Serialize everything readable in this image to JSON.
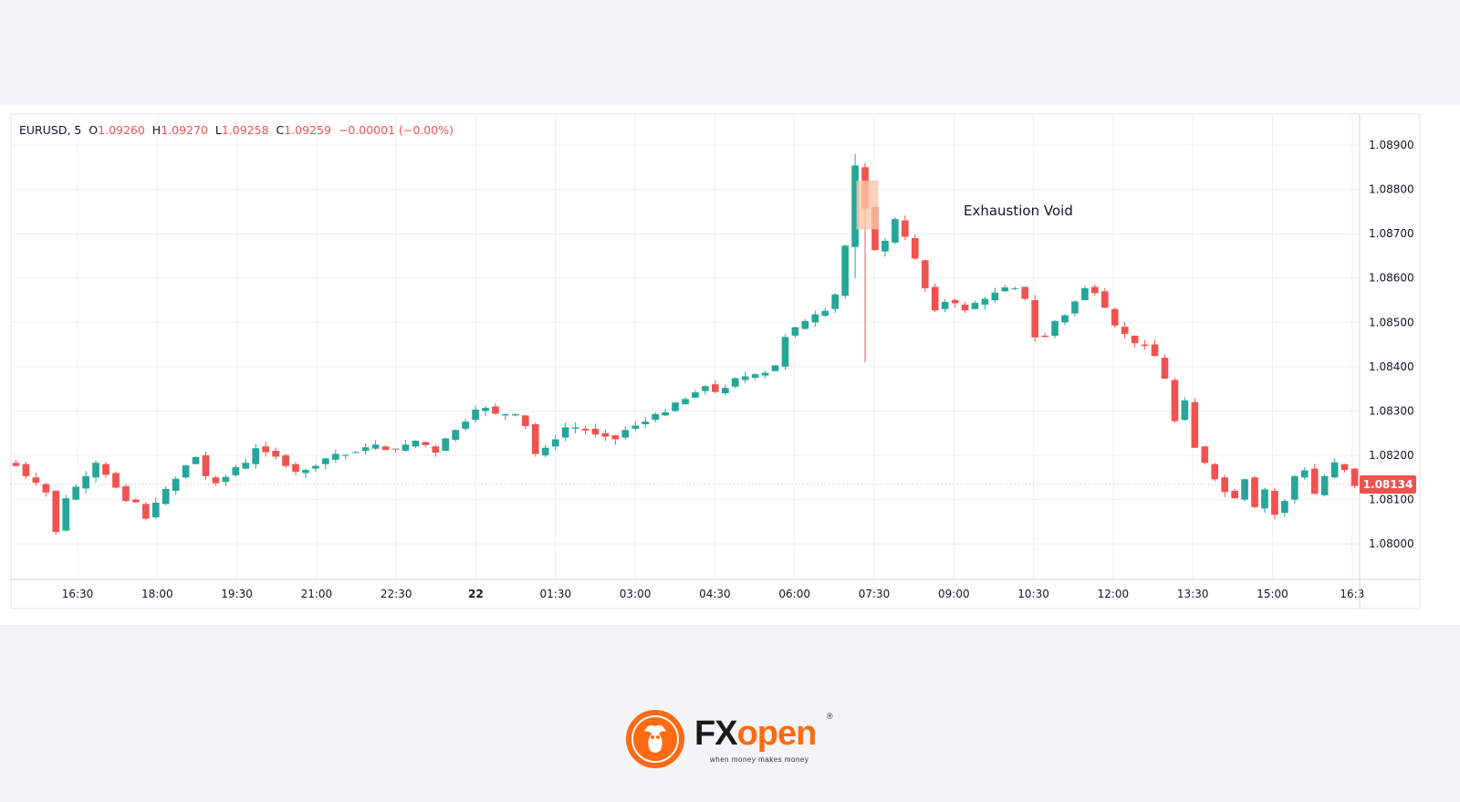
{
  "header": {
    "symbol": "EURUSD, 5",
    "open_label": "O",
    "open_value": "1.09260",
    "high_label": "H",
    "high_value": "1.09270",
    "low_label": "L",
    "low_value": "1.09258",
    "close_label": "C",
    "close_value": "1.09259",
    "change": "−0.00001 (−0.00%)"
  },
  "annotation": {
    "label": "Exhaustion Void"
  },
  "price_badge": "1.08134",
  "logo": {
    "brand_fx": "FX",
    "brand_open": "open",
    "registered": "®",
    "tagline": "when money makes money"
  },
  "colors": {
    "up": "#26a69a",
    "down": "#ef5350",
    "void_fill": "#fbc4a8",
    "badge": "#ef5350"
  },
  "chart_data": {
    "type": "candlestick",
    "timeframe": "5",
    "y_ticks": [
      "1.08000",
      "1.08100",
      "1.08200",
      "1.08300",
      "1.08400",
      "1.08500",
      "1.08600",
      "1.08700",
      "1.08800",
      "1.08900"
    ],
    "x_ticks": [
      "16:30",
      "18:00",
      "19:30",
      "21:00",
      "22:30",
      "22",
      "01:30",
      "03:00",
      "04:30",
      "06:00",
      "07:30",
      "09:00",
      "10:30",
      "12:00",
      "13:30",
      "15:00",
      "16:3"
    ],
    "ylim": [
      1.0792,
      1.0897
    ],
    "grid": true,
    "last_price": 1.08134,
    "close_path": [
      [
        0,
        1.0818
      ],
      [
        1,
        1.0815
      ],
      [
        3,
        1.0812
      ],
      [
        4,
        1.0803
      ],
      [
        5,
        1.081
      ],
      [
        7,
        1.0815
      ],
      [
        8,
        1.0818
      ],
      [
        9,
        1.0816
      ],
      [
        11,
        1.081
      ],
      [
        12,
        1.0809
      ],
      [
        13,
        1.0806
      ],
      [
        15,
        1.0812
      ],
      [
        17,
        1.0818
      ],
      [
        18,
        1.082
      ],
      [
        19,
        1.0815
      ],
      [
        20,
        1.0814
      ],
      [
        22,
        1.0817
      ],
      [
        23,
        1.0818
      ],
      [
        24,
        1.0822
      ],
      [
        26,
        1.082
      ],
      [
        28,
        1.0816
      ],
      [
        30,
        1.0818
      ],
      [
        32,
        1.082
      ],
      [
        34,
        1.0821
      ],
      [
        36,
        1.0822
      ],
      [
        38,
        1.0821
      ],
      [
        40,
        1.0823
      ],
      [
        42,
        1.0821
      ],
      [
        44,
        1.0826
      ],
      [
        46,
        1.083
      ],
      [
        47,
        1.0831
      ],
      [
        48,
        1.0829
      ],
      [
        50,
        1.0829
      ],
      [
        51,
        1.0827
      ],
      [
        52,
        1.082
      ],
      [
        53,
        1.0822
      ],
      [
        55,
        1.0826
      ],
      [
        57,
        1.0826
      ],
      [
        58,
        1.0825
      ],
      [
        60,
        1.0824
      ],
      [
        61,
        1.0826
      ],
      [
        63,
        1.0828
      ],
      [
        65,
        1.083
      ],
      [
        67,
        1.0833
      ],
      [
        69,
        1.0836
      ],
      [
        70,
        1.0834
      ],
      [
        72,
        1.0837
      ],
      [
        74,
        1.0838
      ],
      [
        76,
        1.084
      ],
      [
        77,
        1.0847
      ],
      [
        79,
        1.085
      ],
      [
        81,
        1.0853
      ],
      [
        82,
        1.0856
      ],
      [
        83,
        1.0867
      ],
      [
        84,
        1.0885
      ],
      [
        85,
        1.0876
      ],
      [
        86,
        1.0866
      ],
      [
        87,
        1.0868
      ],
      [
        88,
        1.0873
      ],
      [
        89,
        1.0869
      ],
      [
        90,
        1.0864
      ],
      [
        91,
        1.0858
      ],
      [
        92,
        1.0853
      ],
      [
        93,
        1.0855
      ],
      [
        95,
        1.0853
      ],
      [
        97,
        1.0855
      ],
      [
        98,
        1.0857
      ],
      [
        100,
        1.0858
      ],
      [
        101,
        1.0855
      ],
      [
        102,
        1.0847
      ],
      [
        103,
        1.0847
      ],
      [
        104,
        1.085
      ],
      [
        105,
        1.0852
      ],
      [
        106,
        1.0855
      ],
      [
        107,
        1.0858
      ],
      [
        108,
        1.0857
      ],
      [
        109,
        1.0853
      ],
      [
        110,
        1.0849
      ],
      [
        111,
        1.0847
      ],
      [
        112,
        1.0845
      ],
      [
        113,
        1.0845
      ],
      [
        114,
        1.0842
      ],
      [
        115,
        1.0837
      ],
      [
        116,
        1.0828
      ],
      [
        117,
        1.0832
      ],
      [
        118,
        1.0822
      ],
      [
        119,
        1.0818
      ],
      [
        120,
        1.0815
      ],
      [
        121,
        1.0812
      ],
      [
        122,
        1.081
      ],
      [
        123,
        1.0815
      ],
      [
        124,
        1.0808
      ],
      [
        125,
        1.0812
      ],
      [
        126,
        1.0807
      ],
      [
        127,
        1.081
      ],
      [
        128,
        1.0815
      ],
      [
        129,
        1.0817
      ],
      [
        130,
        1.0811
      ],
      [
        131,
        1.0815
      ],
      [
        132,
        1.0818
      ],
      [
        133,
        1.0817
      ],
      [
        134,
        1.08134
      ]
    ]
  }
}
